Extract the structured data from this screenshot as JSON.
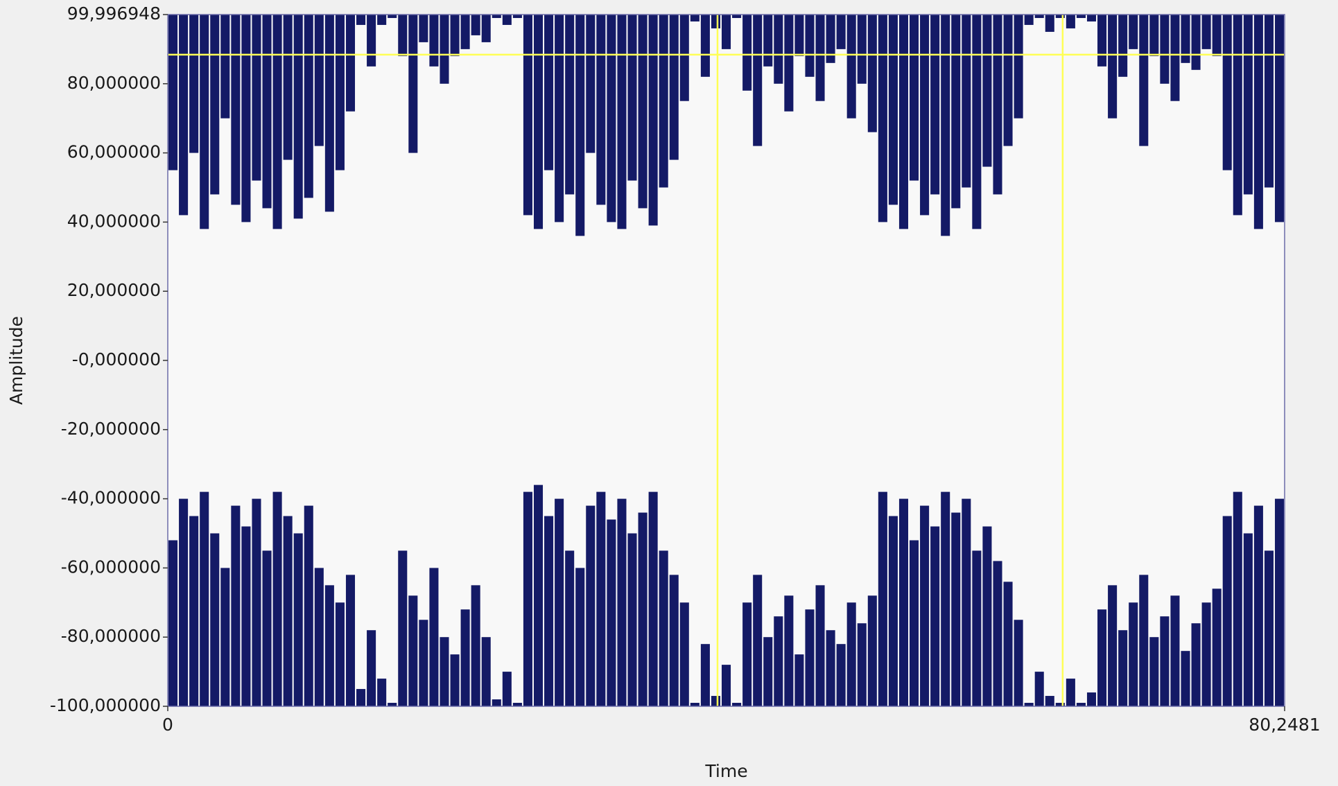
{
  "chart_data": {
    "type": "waveform",
    "x_label": "Time",
    "y_label": "Amplitude",
    "xlim": [
      0,
      80.2481
    ],
    "ylim": [
      -100,
      99.996948
    ],
    "xticks": [
      0,
      {
        "value": 80.2481,
        "label": "80,2481"
      }
    ],
    "yticks": [
      {
        "value": 99.996948,
        "label": "99,996948"
      },
      {
        "value": 80,
        "label": "80,000000"
      },
      {
        "value": 60,
        "label": "60,000000"
      },
      {
        "value": 40,
        "label": "40,000000"
      },
      {
        "value": 20,
        "label": "20,000000"
      },
      {
        "value": 0,
        "label": "-0,000000"
      },
      {
        "value": -20,
        "label": "-20,000000"
      },
      {
        "value": -40,
        "label": "-40,000000"
      },
      {
        "value": -60,
        "label": "-60,000000"
      },
      {
        "value": -80,
        "label": "-80,000000"
      },
      {
        "value": -100,
        "label": "-100,000000"
      }
    ],
    "x": [
      0,
      0.75,
      1.5,
      2.25,
      3,
      3.75,
      4.5,
      5.25,
      6,
      6.75,
      7.5,
      8.25,
      9,
      9.75,
      10.5,
      11.25,
      12,
      12.75,
      13.5,
      14.25,
      15,
      15.75,
      16.5,
      17.25,
      18,
      18.75,
      19.5,
      20.25,
      21,
      21.75,
      22.5,
      23.25,
      24,
      24.75,
      25.5,
      26.25,
      27,
      27.75,
      28.5,
      29.25,
      30,
      30.75,
      31.5,
      32.25,
      33,
      33.75,
      34.5,
      35.25,
      36,
      36.75,
      37.5,
      38.25,
      39,
      39.75,
      40.5,
      41.25,
      42,
      42.75,
      43.5,
      44.25,
      45,
      45.75,
      46.5,
      47.25,
      48,
      48.75,
      49.5,
      50.25,
      51,
      51.75,
      52.5,
      53.25,
      54,
      54.75,
      55.5,
      56.25,
      57,
      57.75,
      58.5,
      59.25,
      60,
      60.75,
      61.5,
      62.25,
      63,
      63.75,
      64.5,
      65.25,
      66,
      66.75,
      67.5,
      68.25,
      69,
      69.75,
      70.5,
      71.25,
      72,
      72.75,
      73.5,
      74.25,
      75,
      75.75,
      76.5,
      77.25,
      78,
      78.75,
      79.5
    ],
    "series": [
      {
        "color": "#141a66",
        "values": [
          55,
          42,
          60,
          38,
          48,
          70,
          45,
          40,
          52,
          44,
          38,
          58,
          41,
          47,
          62,
          43,
          55,
          72,
          97,
          85,
          97,
          99,
          88,
          60,
          92,
          85,
          80,
          88,
          90,
          94,
          92,
          99,
          97,
          99,
          42,
          38,
          55,
          40,
          48,
          36,
          60,
          45,
          40,
          38,
          52,
          44,
          39,
          50,
          58,
          75,
          98,
          82,
          96,
          90,
          99,
          78,
          62,
          85,
          80,
          72,
          88,
          82,
          75,
          86,
          90,
          70,
          80,
          66,
          40,
          45,
          38,
          52,
          42,
          48,
          36,
          44,
          50,
          38,
          56,
          48,
          62,
          70,
          97,
          99,
          95,
          99,
          96,
          99,
          98,
          85,
          70,
          82,
          90,
          62,
          88,
          80,
          75,
          86,
          84,
          90,
          88,
          55,
          42,
          48,
          38,
          50,
          40
        ]
      },
      {
        "color": "#141a66",
        "values": [
          -52,
          -40,
          -45,
          -38,
          -50,
          -60,
          -42,
          -48,
          -40,
          -55,
          -38,
          -45,
          -50,
          -42,
          -60,
          -65,
          -70,
          -62,
          -95,
          -78,
          -92,
          -99,
          -55,
          -68,
          -75,
          -60,
          -80,
          -85,
          -72,
          -65,
          -80,
          -98,
          -90,
          -99,
          -38,
          -36,
          -45,
          -40,
          -55,
          -60,
          -42,
          -38,
          -46,
          -40,
          -50,
          -44,
          -38,
          -55,
          -62,
          -70,
          -99,
          -82,
          -97,
          -88,
          -99,
          -70,
          -62,
          -80,
          -74,
          -68,
          -85,
          -72,
          -65,
          -78,
          -82,
          -70,
          -76,
          -68,
          -38,
          -45,
          -40,
          -52,
          -42,
          -48,
          -38,
          -44,
          -40,
          -55,
          -48,
          -58,
          -64,
          -75,
          -99,
          -90,
          -97,
          -99,
          -92,
          -99,
          -96,
          -72,
          -65,
          -78,
          -70,
          -62,
          -80,
          -74,
          -68,
          -84,
          -76,
          -70,
          -66,
          -45,
          -38,
          -50,
          -42,
          -55,
          -40
        ]
      }
    ],
    "cursors": {
      "color": "#ffff55",
      "x": [
        39.5,
        64.3
      ],
      "y": [
        88.4
      ]
    }
  }
}
